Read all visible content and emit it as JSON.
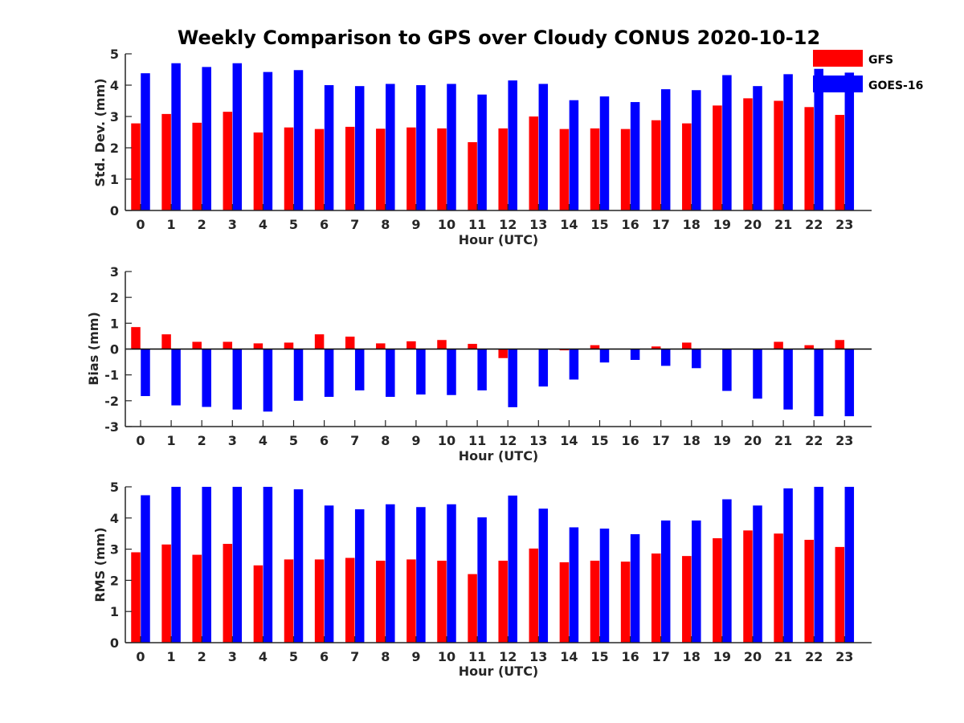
{
  "chart_data": {
    "title": "Weekly Comparison to GPS over Cloudy CONUS 2020-10-12",
    "type": "bar",
    "legend": {
      "placement": "top-right",
      "entries": [
        "GFS",
        "GOES-16"
      ]
    },
    "colors": {
      "GFS": "#ff0000",
      "GOES-16": "#0000ff"
    },
    "x_ticks": [
      "0",
      "1",
      "2",
      "3",
      "4",
      "5",
      "6",
      "7",
      "8",
      "9",
      "10",
      "11",
      "12",
      "13",
      "14",
      "15",
      "16",
      "17",
      "18",
      "19",
      "20",
      "21",
      "22",
      "23"
    ],
    "panels": [
      {
        "ylabel": "Std. Dev. (mm)",
        "xlabel": "Hour (UTC)",
        "ylim": [
          0,
          5
        ],
        "yticks": [
          "0",
          "1",
          "2",
          "3",
          "4",
          "5"
        ],
        "series": [
          {
            "name": "GFS",
            "values": [
              2.78,
              3.08,
              2.8,
              3.15,
              2.49,
              2.65,
              2.6,
              2.67,
              2.61,
              2.65,
              2.62,
              2.18,
              2.62,
              3.0,
              2.6,
              2.62,
              2.6,
              2.88,
              2.78,
              3.35,
              3.58,
              3.5,
              3.3,
              3.05
            ]
          },
          {
            "name": "GOES-16",
            "values": [
              4.38,
              4.7,
              4.58,
              4.7,
              4.42,
              4.48,
              4.0,
              3.97,
              4.04,
              4.0,
              4.04,
              3.7,
              4.15,
              4.04,
              3.52,
              3.64,
              3.46,
              3.87,
              3.84,
              4.32,
              3.97,
              4.35,
              4.52,
              4.4
            ]
          }
        ]
      },
      {
        "ylabel": "Bias (mm)",
        "xlabel": "Hour (UTC)",
        "ylim": [
          -3,
          3
        ],
        "yticks": [
          "-3",
          "-2",
          "-1",
          "0",
          "1",
          "2",
          "3"
        ],
        "series": [
          {
            "name": "GFS",
            "values": [
              0.85,
              0.57,
              0.28,
              0.28,
              0.22,
              0.25,
              0.57,
              0.48,
              0.22,
              0.3,
              0.35,
              0.2,
              -0.35,
              0.0,
              -0.05,
              0.15,
              0.0,
              0.1,
              0.25,
              0.0,
              0.0,
              0.28,
              0.15,
              0.35
            ]
          },
          {
            "name": "GOES-16",
            "values": [
              -1.82,
              -2.18,
              -2.24,
              -2.34,
              -2.42,
              -2.0,
              -1.85,
              -1.6,
              -1.85,
              -1.76,
              -1.78,
              -1.6,
              -2.25,
              -1.45,
              -1.18,
              -0.52,
              -0.42,
              -0.65,
              -0.74,
              -1.62,
              -1.92,
              -2.34,
              -2.6,
              -2.6
            ]
          }
        ]
      },
      {
        "ylabel": "RMS (mm)",
        "xlabel": "Hour (UTC)",
        "ylim": [
          0,
          5
        ],
        "yticks": [
          "0",
          "1",
          "2",
          "3",
          "4",
          "5"
        ],
        "series": [
          {
            "name": "GFS",
            "values": [
              2.9,
              3.15,
              2.82,
              3.17,
              2.48,
              2.67,
              2.67,
              2.72,
              2.63,
              2.67,
              2.63,
              2.2,
              2.63,
              3.02,
              2.58,
              2.63,
              2.6,
              2.86,
              2.78,
              3.35,
              3.6,
              3.5,
              3.3,
              3.07
            ]
          },
          {
            "name": "GOES-16",
            "values": [
              4.73,
              5.0,
              5.0,
              5.0,
              5.0,
              4.92,
              4.4,
              4.28,
              4.44,
              4.35,
              4.44,
              4.02,
              4.72,
              4.3,
              3.7,
              3.66,
              3.48,
              3.92,
              3.92,
              4.6,
              4.4,
              4.95,
              5.0,
              5.0
            ]
          }
        ]
      }
    ]
  }
}
